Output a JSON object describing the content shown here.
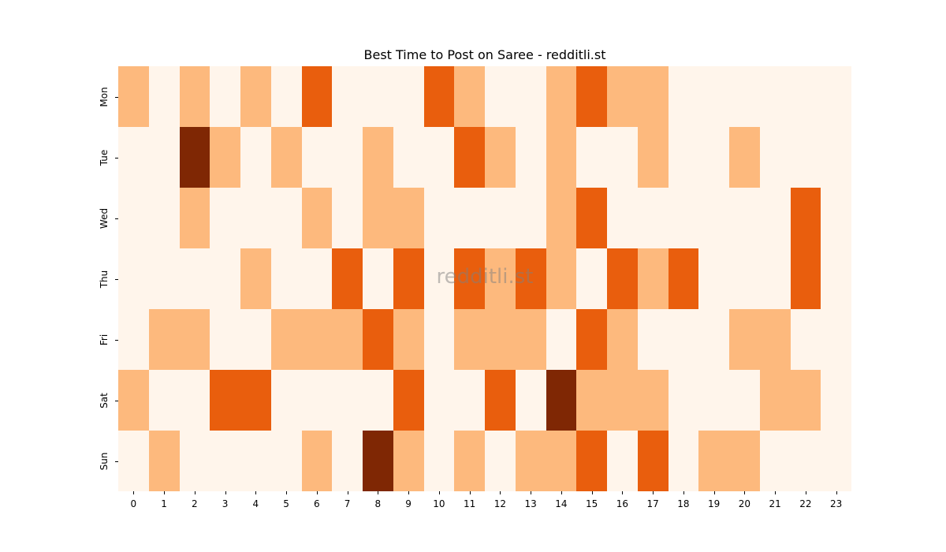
{
  "chart_data": {
    "type": "heatmap",
    "title": "Best Time to Post on Saree - redditli.st",
    "xlabel": "",
    "ylabel": "",
    "x": [
      "0",
      "1",
      "2",
      "3",
      "4",
      "5",
      "6",
      "7",
      "8",
      "9",
      "10",
      "11",
      "12",
      "13",
      "14",
      "15",
      "16",
      "17",
      "18",
      "19",
      "20",
      "21",
      "22",
      "23"
    ],
    "y": [
      "Mon",
      "Tue",
      "Wed",
      "Thu",
      "Fri",
      "Sat",
      "Sun"
    ],
    "colormap": "Oranges",
    "legend": "none",
    "values": [
      [
        1,
        0,
        1,
        0,
        1,
        0,
        2,
        0,
        0,
        0,
        2,
        1,
        0,
        0,
        1,
        2,
        1,
        1,
        0,
        0,
        0,
        0,
        0,
        0
      ],
      [
        0,
        0,
        3,
        1,
        0,
        1,
        0,
        0,
        1,
        0,
        0,
        2,
        1,
        0,
        1,
        0,
        0,
        1,
        0,
        0,
        1,
        0,
        0,
        0
      ],
      [
        0,
        0,
        1,
        0,
        0,
        0,
        1,
        0,
        1,
        1,
        0,
        0,
        0,
        0,
        1,
        2,
        0,
        0,
        0,
        0,
        0,
        0,
        2,
        0
      ],
      [
        0,
        0,
        0,
        0,
        1,
        0,
        0,
        2,
        0,
        2,
        0,
        2,
        1,
        2,
        1,
        0,
        2,
        1,
        2,
        0,
        0,
        0,
        2,
        0
      ],
      [
        0,
        1,
        1,
        0,
        0,
        1,
        1,
        1,
        2,
        1,
        0,
        1,
        1,
        1,
        0,
        2,
        1,
        0,
        0,
        0,
        1,
        1,
        0,
        0
      ],
      [
        1,
        0,
        0,
        2,
        2,
        0,
        0,
        0,
        0,
        2,
        0,
        0,
        2,
        0,
        3,
        1,
        1,
        1,
        0,
        0,
        0,
        1,
        1,
        0
      ],
      [
        0,
        1,
        0,
        0,
        0,
        0,
        1,
        0,
        3,
        1,
        0,
        1,
        0,
        1,
        1,
        2,
        0,
        2,
        0,
        1,
        1,
        0,
        0,
        0
      ]
    ],
    "level_colors": [
      "#fff5eb",
      "#fdb97d",
      "#e95e0d",
      "#7f2704"
    ],
    "watermark": "redditli.st"
  }
}
